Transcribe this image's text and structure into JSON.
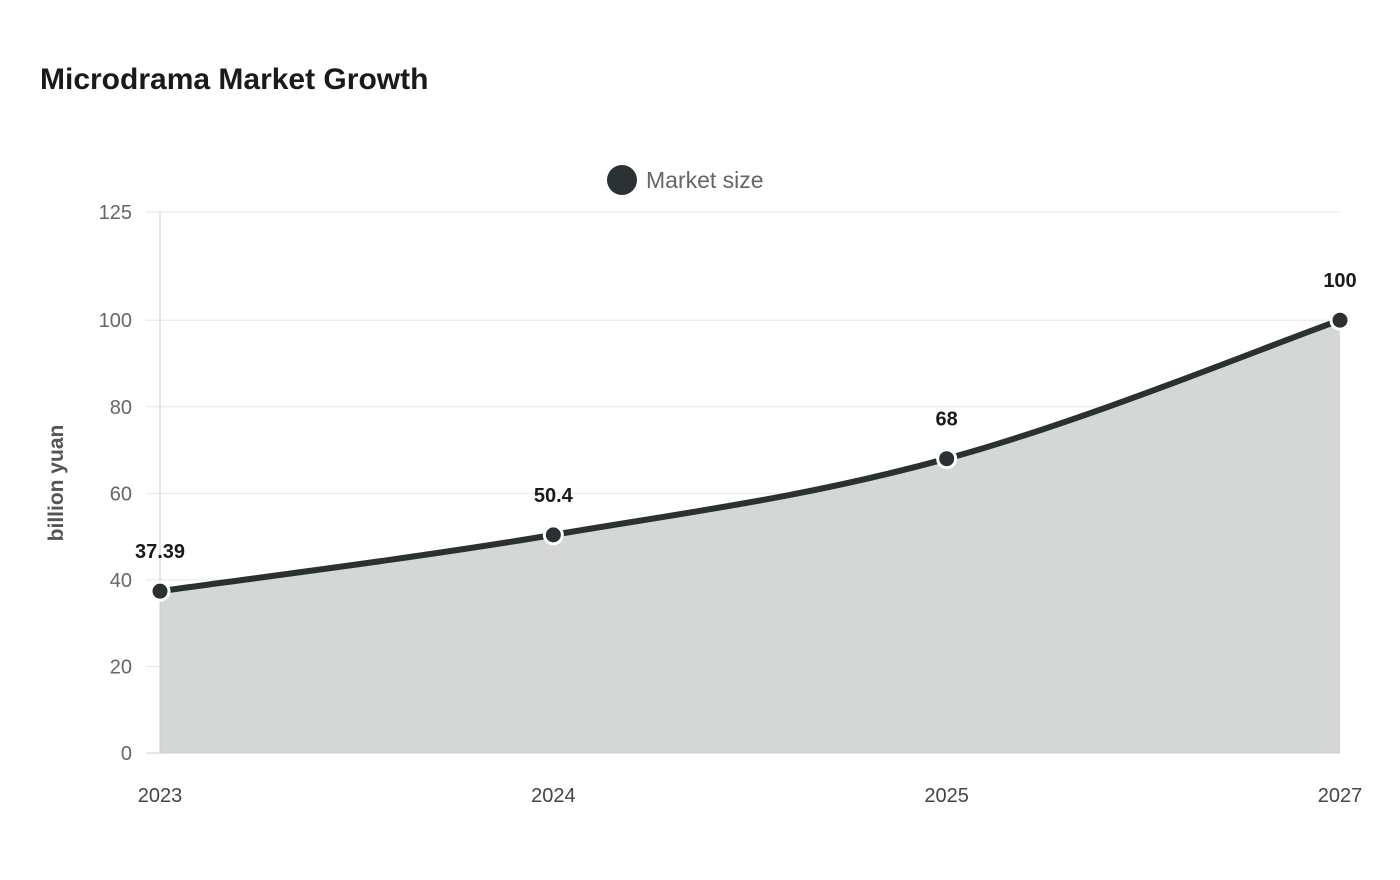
{
  "colors": {
    "series": "#2b3133",
    "area_fill": "#d5d7d6",
    "marker_stroke": "#ffffff"
  },
  "chart_data": {
    "type": "area",
    "title": "Microdrama Market Growth",
    "xlabel": "",
    "ylabel": "billion yuan",
    "categories": [
      "2023",
      "2024",
      "2025",
      "2027"
    ],
    "series": [
      {
        "name": "Market size",
        "values": [
          37.39,
          50.4,
          68,
          100
        ],
        "data_labels": [
          "37.39",
          "50.4",
          "68",
          "100"
        ]
      }
    ],
    "ylim": [
      0,
      125
    ],
    "yticks": [
      0,
      20,
      40,
      60,
      80,
      100,
      125
    ],
    "ytick_labels": [
      "0",
      "20",
      "40",
      "60",
      "80",
      "100",
      "125"
    ],
    "grid": true,
    "legend_position": "top-center",
    "smooth": true
  }
}
